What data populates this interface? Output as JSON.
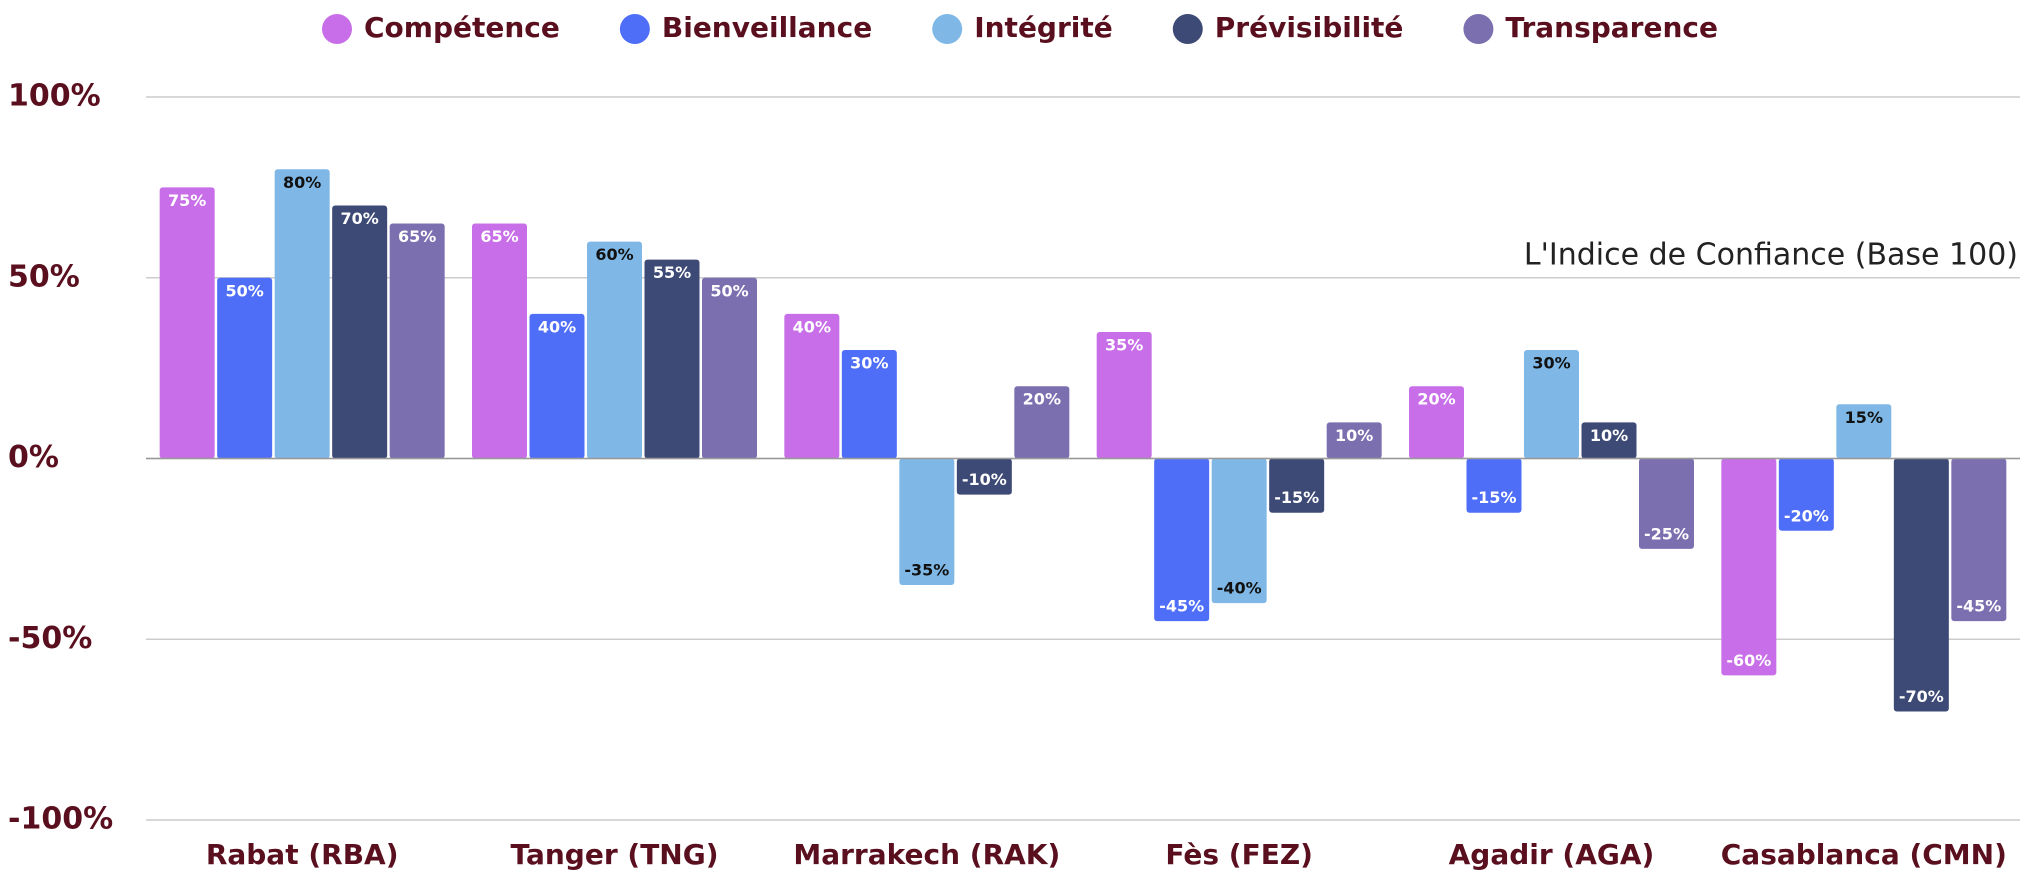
{
  "chart_data": {
    "type": "bar",
    "annotation": "L'Indice de Confiance (Base 100)",
    "categories": [
      "Rabat (RBA)",
      "Tanger (TNG)",
      "Marrakech (RAK)",
      "Fès (FEZ)",
      "Agadir (AGA)",
      "Casablanca (CMN)"
    ],
    "series": [
      {
        "name": "Compétence",
        "color": "#c86ee8",
        "values": [
          75,
          65,
          40,
          35,
          20,
          -60
        ],
        "value_labels": [
          "75%",
          "65%",
          "40%",
          "35%",
          "20%",
          "-60%"
        ]
      },
      {
        "name": "Bienveillance",
        "color": "#4f6ef7",
        "values": [
          50,
          40,
          30,
          -45,
          -15,
          -20
        ],
        "value_labels": [
          "50%",
          "40%",
          "30%",
          "-45%",
          "-15%",
          "-20%"
        ]
      },
      {
        "name": "Intégrité",
        "color": "#7fb8e6",
        "values": [
          80,
          60,
          -35,
          -40,
          30,
          15
        ],
        "value_labels": [
          "80%",
          "60%",
          "-35%",
          "-40%",
          "30%",
          "15%"
        ]
      },
      {
        "name": "Prévisibilité",
        "color": "#3d4a75",
        "values": [
          70,
          55,
          -10,
          -15,
          10,
          -70
        ],
        "value_labels": [
          "70%",
          "55%",
          "-10%",
          "-15%",
          "10%",
          "-70%"
        ]
      },
      {
        "name": "Transparence",
        "color": "#7b6fb0",
        "values": [
          65,
          50,
          20,
          10,
          -25,
          -45
        ],
        "value_labels": [
          "65%",
          "50%",
          "20%",
          "10%",
          "-25%",
          "-45%"
        ]
      }
    ],
    "ylim": [
      -100,
      100
    ],
    "yticks": [
      {
        "value": -100,
        "label": "-100%"
      },
      {
        "value": -50,
        "label": "-50%"
      },
      {
        "value": 0,
        "label": "0%"
      },
      {
        "value": 50,
        "label": "50%"
      },
      {
        "value": 100,
        "label": "100%"
      }
    ],
    "grid": true,
    "legend": "top"
  }
}
